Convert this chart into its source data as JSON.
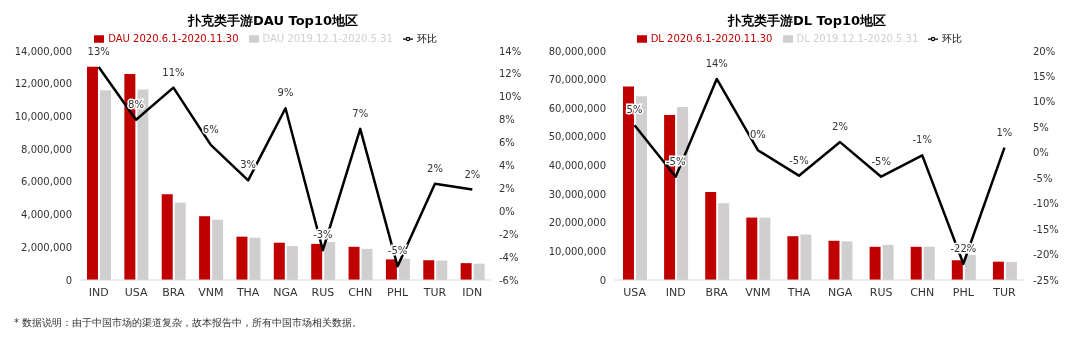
{
  "chart_data": [
    {
      "type": "bar",
      "title": "扑克类手游DAU Top10地区",
      "categories": [
        "IND",
        "USA",
        "BRA",
        "VNM",
        "THA",
        "NGA",
        "RUS",
        "CHN",
        "PHL",
        "TUR",
        "IDN"
      ],
      "series": [
        {
          "name": "DAU 2020.6.1-2020.11.30",
          "color": "#c00000",
          "values": [
            13040000,
            12600000,
            5250000,
            3900000,
            2650000,
            2280000,
            2210000,
            2030000,
            1260000,
            1210000,
            1030000
          ]
        },
        {
          "name": "DAU 2019.12.1-2020.5.31",
          "color": "#d0cece",
          "values": [
            11600000,
            11650000,
            4730000,
            3680000,
            2580000,
            2080000,
            2330000,
            1900000,
            1300000,
            1190000,
            1000000
          ]
        },
        {
          "name": "环比",
          "type": "line",
          "axis": "y2",
          "color": "#000000",
          "values": [
            12.6,
            8.0,
            10.8,
            5.8,
            2.7,
            9.0,
            -3.4,
            7.2,
            -4.8,
            2.4,
            1.9
          ],
          "value_labels": [
            "13%",
            "8%",
            "11%",
            "6%",
            "3%",
            "9%",
            "-3%",
            "7%",
            "-5%",
            "2%",
            "2%"
          ]
        }
      ],
      "ylim": [
        0,
        14000000
      ],
      "yticks": [
        {
          "value": 0,
          "label": "0"
        },
        {
          "value": 2000000,
          "label": "2,000,000"
        },
        {
          "value": 4000000,
          "label": "4,000,000"
        },
        {
          "value": 6000000,
          "label": "6,000,000"
        },
        {
          "value": 8000000,
          "label": "8,000,000"
        },
        {
          "value": 10000000,
          "label": "10,000,000"
        },
        {
          "value": 12000000,
          "label": "12,000,000"
        },
        {
          "value": 14000000,
          "label": "14,000,000"
        }
      ],
      "y2lim": [
        -6,
        14
      ],
      "y2ticks": [
        {
          "value": -6,
          "label": "-6%"
        },
        {
          "value": -4,
          "label": "-4%"
        },
        {
          "value": -2,
          "label": "-2%"
        },
        {
          "value": 0,
          "label": "0%"
        },
        {
          "value": 2,
          "label": "2%"
        },
        {
          "value": 4,
          "label": "4%"
        },
        {
          "value": 6,
          "label": "6%"
        },
        {
          "value": 8,
          "label": "8%"
        },
        {
          "value": 10,
          "label": "10%"
        },
        {
          "value": 12,
          "label": "12%"
        },
        {
          "value": 14,
          "label": "14%"
        }
      ],
      "legend": "top",
      "grid": false,
      "marker": "none",
      "annotations": [
        "* 数据说明：由于中国市场的渠道复杂，故本报告中，所有中国市场相关数据。"
      ]
    },
    {
      "type": "bar",
      "title": "扑克类手游DL Top10地区",
      "categories": [
        "USA",
        "IND",
        "BRA",
        "VNM",
        "THA",
        "NGA",
        "RUS",
        "CHN",
        "PHL",
        "TUR"
      ],
      "series": [
        {
          "name": "DL 2020.6.1-2020.11.30",
          "color": "#c00000",
          "values": [
            67600000,
            57600000,
            30700000,
            21800000,
            15300000,
            13700000,
            11600000,
            11600000,
            6900000,
            6400000
          ]
        },
        {
          "name": "DL 2019.12.1-2020.5.31",
          "color": "#d0cece",
          "values": [
            64200000,
            60400000,
            26800000,
            21800000,
            15900000,
            13500000,
            12300000,
            11600000,
            8700000,
            6300000
          ]
        },
        {
          "name": "环比",
          "type": "line",
          "axis": "y2",
          "color": "#000000",
          "values": [
            5.4,
            -4.7,
            14.5,
            0.5,
            -4.5,
            2.1,
            -4.7,
            -0.5,
            -21.8,
            1.0
          ],
          "value_labels": [
            "5%",
            "-5%",
            "14%",
            "0%",
            "-5%",
            "2%",
            "-5%",
            "-1%",
            "-22%",
            "1%"
          ]
        }
      ],
      "ylim": [
        0,
        80000000
      ],
      "yticks": [
        {
          "value": 0,
          "label": "0"
        },
        {
          "value": 10000000,
          "label": "10,000,000"
        },
        {
          "value": 20000000,
          "label": "20,000,000"
        },
        {
          "value": 30000000,
          "label": "30,000,000"
        },
        {
          "value": 40000000,
          "label": "40,000,000"
        },
        {
          "value": 50000000,
          "label": "50,000,000"
        },
        {
          "value": 60000000,
          "label": "60,000,000"
        },
        {
          "value": 70000000,
          "label": "70,000,000"
        },
        {
          "value": 80000000,
          "label": "80,000,000"
        }
      ],
      "y2lim": [
        -25,
        20
      ],
      "y2ticks": [
        {
          "value": -25,
          "label": "-25%"
        },
        {
          "value": -20,
          "label": "-20%"
        },
        {
          "value": -15,
          "label": "-15%"
        },
        {
          "value": -10,
          "label": "-10%"
        },
        {
          "value": -5,
          "label": "-5%"
        },
        {
          "value": 0,
          "label": "0%"
        },
        {
          "value": 5,
          "label": "5%"
        },
        {
          "value": 10,
          "label": "10%"
        },
        {
          "value": 15,
          "label": "15%"
        },
        {
          "value": 20,
          "label": "20%"
        }
      ],
      "legend": "top",
      "grid": false,
      "marker": "none"
    }
  ]
}
